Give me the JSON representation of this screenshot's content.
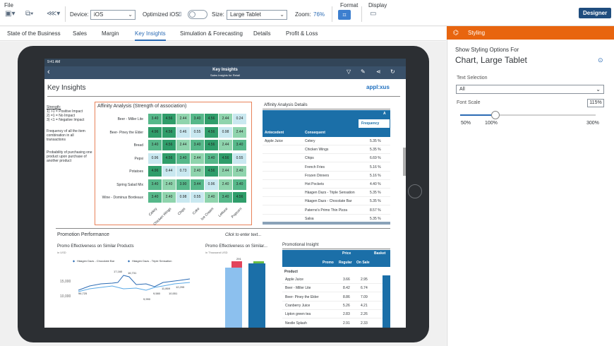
{
  "toolbar": {
    "file_label": "File",
    "device_label": "Device:",
    "device_value": "iOS",
    "optimized_label": "Optimized iOS:",
    "size_label": "Size:",
    "size_value": "Large Tablet",
    "zoom_label": "Zoom:",
    "zoom_value": "76%",
    "format_label": "Format",
    "display_label": "Display",
    "designer_label": "Designer"
  },
  "tabs": [
    {
      "label": "State of the Business"
    },
    {
      "label": "Sales"
    },
    {
      "label": "Margin"
    },
    {
      "label": "Key Insights",
      "active": true
    },
    {
      "label": "Simulation & Forecasting"
    },
    {
      "label": "Details"
    },
    {
      "label": "Profit & Loss"
    }
  ],
  "app": {
    "status_time": "9:41 AM",
    "title": "Key Insights",
    "subtitle": "Sales Insights for Retail",
    "page_heading": "Key Insights",
    "logo_text": "appl:xus",
    "legend_lines": [
      "Strength:",
      "1) >1 = Positive Impact",
      "2) =1 = No Impact",
      "3) <1 = Negative Impact"
    ],
    "frequency_text": "Frequency of all the item combination in all transactions",
    "probability_text": "Probability of purchasing one product upon purchase of another product",
    "affinity_title": "Affinity Analysis (Strength of association)",
    "affinity_rows": [
      {
        "label": "Beer - Miller Lite",
        "values": [
          "3.40",
          "4.56",
          "2.44",
          "3.40",
          "4.56",
          "2.44",
          "0.24"
        ]
      },
      {
        "label": "Beer- Piney the Elder",
        "values": [
          "4.96",
          "4.56",
          "0.46",
          "0.55",
          "4.56",
          "0.98",
          "2.44"
        ]
      },
      {
        "label": "Bread",
        "values": [
          "3.40",
          "4.56",
          "2.44",
          "3.40",
          "4.56",
          "2.44",
          "3.40"
        ]
      },
      {
        "label": "Pepsi",
        "values": [
          "0.96",
          "4.56",
          "3.40",
          "2.44",
          "3.40",
          "4.56",
          "0.55"
        ]
      },
      {
        "label": "Potatoes",
        "values": [
          "4.96",
          "0.44",
          "0.73",
          "2.40",
          "4.56",
          "2.44",
          "2.40"
        ]
      },
      {
        "label": "Spring Salad Mix",
        "values": [
          "3.40",
          "2.40",
          "3.90",
          "3.44",
          "0.96",
          "2.40",
          "3.40"
        ]
      },
      {
        "label": "Wine - Dominus Bordeaux",
        "values": [
          "3.40",
          "2.40",
          "0.98",
          "0.55",
          "2.40",
          "3.40",
          "4.56"
        ]
      }
    ],
    "affinity_cols": [
      "Celery",
      "Chicken Wings",
      "Chips",
      "Coke",
      "Ice Cream",
      "Lettuce",
      "Popcorn"
    ],
    "details_title": "Affinity Analysis Details",
    "details_header_a": "A",
    "details_header_frequency": "Frequency",
    "details_header_antecedent": "Antecedent",
    "details_header_consequent": "Consequent",
    "details_antecedent": "Apple Juice",
    "details_rows": [
      {
        "consequent": "Celery",
        "freq": "5.35 %"
      },
      {
        "consequent": "Chicken Wings",
        "freq": "5.35 %"
      },
      {
        "consequent": "Chips",
        "freq": "6.69 %"
      },
      {
        "consequent": "French Fries",
        "freq": "5.16 %"
      },
      {
        "consequent": "Frozen Dinners",
        "freq": "5.16 %"
      },
      {
        "consequent": "Hot Pockets",
        "freq": "4.40 %"
      },
      {
        "consequent": "Häagen Dazs - Triple Sensation",
        "freq": "5.35 %"
      },
      {
        "consequent": "Häagen Dazs - Chocolate Bar",
        "freq": "5.35 %"
      },
      {
        "consequent": "Paterno's Primo Thin Pizza",
        "freq": "8.57 %"
      },
      {
        "consequent": "Salsa",
        "freq": "5.35 %"
      }
    ],
    "promo_section_title": "Promotion Performance",
    "click_to_enter": "Click to enter text...",
    "promo_line_title": "Promo Effectiveness on Similar Products",
    "promo_line_unit": "in USD",
    "promo_legend_a": "Häagen Dazs - Chocolate Bar",
    "promo_legend_b": "Häagen Dazs - Triple Sensation",
    "promo_line_yticks": [
      "15,000",
      "10,000"
    ],
    "promo_line_labels": [
      "17,160",
      "16,731",
      "11,869",
      "12,299",
      "10,551",
      "9,990",
      "9,580"
    ],
    "promo_line_small_labels": [
      "96,725",
      "11,920",
      "12,490",
      "12,110",
      "11,770",
      "10,840",
      "9,950"
    ],
    "promo_bar_title": "Promo Effectiveness on Similar...",
    "promo_bar_unit": "in Thousand USD",
    "promo_bar_label_top": "291",
    "promo_bar_label_mid": "5,307",
    "insight_title": "Promotional Insight",
    "insight_header_price": "Price",
    "insight_header_basket": "Basket",
    "insight_header_promo": "Promo",
    "insight_header_regular": "Regular",
    "insight_header_onsale": "On Sale",
    "insight_header_product": "Product",
    "insight_rows": [
      {
        "product": "Apple Juice",
        "regular": "3.66",
        "onsale": "2.95"
      },
      {
        "product": "Beer - Miller Lite",
        "regular": "8.42",
        "onsale": "6.74"
      },
      {
        "product": "Beer- Piney the Elder",
        "regular": "8.86",
        "onsale": "7.09"
      },
      {
        "product": "Cranberry Juice",
        "regular": "5.26",
        "onsale": "4.21"
      },
      {
        "product": "Lipton green tea",
        "regular": "2.83",
        "onsale": "2.26"
      },
      {
        "product": "Nestle Splash",
        "regular": "2.91",
        "onsale": "2.33"
      }
    ]
  },
  "panel": {
    "header": "Styling",
    "show_for": "Show Styling Options For",
    "target": "Chart, Large Tablet",
    "text_selection_label": "Text Selection",
    "text_selection_value": "All",
    "font_scale_label": "Font Scale",
    "font_scale_value": "115%",
    "font_scale_level": 0.115,
    "tick_50": "50%",
    "tick_100": "100%",
    "tick_300": "300%"
  }
}
